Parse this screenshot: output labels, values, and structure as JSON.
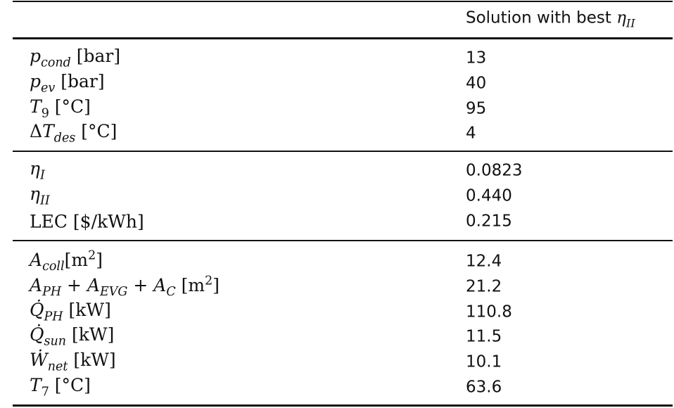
{
  "header": {
    "column": [
      {
        "r": "Solution with best "
      },
      {
        "i": "η"
      },
      {
        "si": "II"
      }
    ]
  },
  "sections": [
    {
      "rows": [
        {
          "label": [
            {
              "i": "p"
            },
            {
              "si": "cond"
            },
            {
              "r": " [bar]"
            }
          ],
          "value": "13"
        },
        {
          "label": [
            {
              "i": "p"
            },
            {
              "si": "ev"
            },
            {
              "r": " [bar]"
            }
          ],
          "value": "40"
        },
        {
          "label": [
            {
              "i": "T"
            },
            {
              "sr": "9"
            },
            {
              "r": " [°C]"
            }
          ],
          "value": "95"
        },
        {
          "label": [
            {
              "r": "Δ"
            },
            {
              "i": "T"
            },
            {
              "si": "des"
            },
            {
              "r": " [°C]"
            }
          ],
          "value": "4"
        }
      ]
    },
    {
      "rows": [
        {
          "label": [
            {
              "i": "η"
            },
            {
              "si": "I"
            }
          ],
          "value": "0.0823"
        },
        {
          "label": [
            {
              "i": "η"
            },
            {
              "si": "II"
            }
          ],
          "value": "0.440"
        },
        {
          "label": [
            {
              "r": "LEC [$/kWh]"
            }
          ],
          "value": "0.215"
        }
      ]
    },
    {
      "rows": [
        {
          "label": [
            {
              "i": "A"
            },
            {
              "si": "coll"
            },
            {
              "r": "[m"
            },
            {
              "sup": "2"
            },
            {
              "r": "]"
            }
          ],
          "value": "12.4"
        },
        {
          "label": [
            {
              "i": "A"
            },
            {
              "si": "PH"
            },
            {
              "r": " + "
            },
            {
              "i": "A"
            },
            {
              "si": "EVG"
            },
            {
              "r": " + "
            },
            {
              "i": "A"
            },
            {
              "si": "C"
            },
            {
              "r": " [m"
            },
            {
              "sup": "2"
            },
            {
              "r": "]"
            }
          ],
          "value": "21.2"
        },
        {
          "label": [
            {
              "i": "Q̇"
            },
            {
              "si": "PH"
            },
            {
              "r": " [kW]"
            }
          ],
          "value": "110.8"
        },
        {
          "label": [
            {
              "i": "Q̇"
            },
            {
              "si": "sun"
            },
            {
              "r": " [kW]"
            }
          ],
          "value": "11.5"
        },
        {
          "label": [
            {
              "i": "Ẇ"
            },
            {
              "si": "net"
            },
            {
              "r": " [kW]"
            }
          ],
          "value": "10.1"
        },
        {
          "label": [
            {
              "i": "T"
            },
            {
              "sr": "7"
            },
            {
              "r": " [°C]"
            }
          ],
          "value": "63.6"
        }
      ]
    }
  ]
}
